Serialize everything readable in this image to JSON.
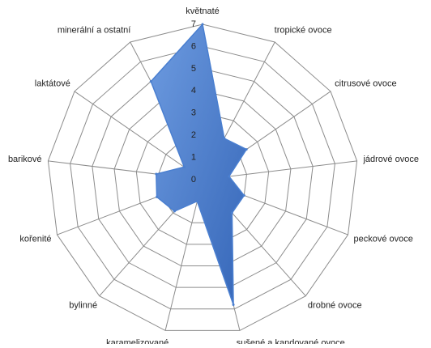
{
  "chart_data": {
    "type": "radar",
    "categories": [
      "květnaté",
      "tropické ovoce",
      "citrusové ovoce",
      "jádrové ovoce",
      "peckové ovoce",
      "drobné ovoce",
      "sušené a kandované ovoce",
      "karamelizované",
      "bylinné",
      "kořenité",
      "barikové",
      "laktátové",
      "minerální a ostatní"
    ],
    "values": [
      7,
      2.1,
      2.4,
      1.2,
      2,
      2,
      5.8,
      1,
      1.9,
      2.2,
      2.1,
      1,
      5
    ],
    "color": "#4a7fd0",
    "ylim": [
      0,
      7
    ],
    "yticks": [
      0,
      1,
      2,
      3,
      4,
      5,
      6,
      7
    ],
    "grid": true
  }
}
